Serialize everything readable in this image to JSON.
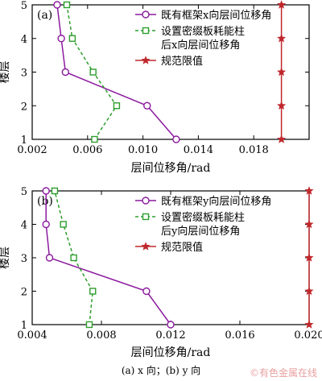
{
  "chart_data": [
    {
      "type": "line",
      "panel_label": "(a)",
      "xlabel": "层间位移角/rad",
      "ylabel": "楼层",
      "xlim": [
        0.002,
        0.022
      ],
      "ylim": [
        1,
        5
      ],
      "x_ticks": [
        "0.002",
        "0.006",
        "0.010",
        "0.014",
        "0.018"
      ],
      "y_ticks": [
        "1",
        "2",
        "3",
        "4",
        "5"
      ],
      "legend_position": "top-right",
      "series": [
        {
          "name_lines": [
            "既有框架x向层间位移角"
          ],
          "color": "#8b1a9e",
          "marker": "circle",
          "dash": "",
          "points": [
            [
              0.0124,
              1
            ],
            [
              0.0103,
              2
            ],
            [
              0.0044,
              3
            ],
            [
              0.0041,
              4
            ],
            [
              0.0038,
              5
            ]
          ]
        },
        {
          "name_lines": [
            "设置密缀板耗能柱",
            "后x向层间位移角"
          ],
          "color": "#2e9e2e",
          "marker": "square",
          "dash": "4,3",
          "points": [
            [
              0.0065,
              1
            ],
            [
              0.0081,
              2
            ],
            [
              0.0064,
              3
            ],
            [
              0.0049,
              4
            ],
            [
              0.0045,
              5
            ]
          ]
        },
        {
          "name_lines": [
            "规范限值"
          ],
          "color": "#c0282d",
          "marker": "star",
          "dash": "",
          "points": [
            [
              0.02,
              1
            ],
            [
              0.02,
              2
            ],
            [
              0.02,
              3
            ],
            [
              0.02,
              4
            ],
            [
              0.02,
              5
            ]
          ]
        }
      ]
    },
    {
      "type": "line",
      "panel_label": "(b)",
      "xlabel": "层间位移角/rad",
      "ylabel": "楼层",
      "xlim": [
        0.004,
        0.02
      ],
      "ylim": [
        1,
        5
      ],
      "x_ticks": [
        "0.004",
        "0.008",
        "0.012",
        "0.016",
        "0.020"
      ],
      "y_ticks": [
        "1",
        "2",
        "3",
        "4",
        "5"
      ],
      "legend_position": "top-right",
      "series": [
        {
          "name_lines": [
            "既有框架y向层间位移角"
          ],
          "color": "#8b1a9e",
          "marker": "circle",
          "dash": "",
          "points": [
            [
              0.012,
              1
            ],
            [
              0.0106,
              2
            ],
            [
              0.005,
              3
            ],
            [
              0.0048,
              4
            ],
            [
              0.0048,
              5
            ]
          ]
        },
        {
          "name_lines": [
            "设置密缀板耗能柱",
            "后y向层间位移角"
          ],
          "color": "#2e9e2e",
          "marker": "square",
          "dash": "4,3",
          "points": [
            [
              0.0073,
              1
            ],
            [
              0.0075,
              2
            ],
            [
              0.0064,
              3
            ],
            [
              0.0058,
              4
            ],
            [
              0.0053,
              5
            ]
          ]
        },
        {
          "name_lines": [
            "规范限值"
          ],
          "color": "#c0282d",
          "marker": "star",
          "dash": "",
          "points": [
            [
              0.02,
              1
            ],
            [
              0.02,
              2
            ],
            [
              0.02,
              3
            ],
            [
              0.02,
              4
            ],
            [
              0.02,
              5
            ]
          ]
        }
      ]
    }
  ],
  "caption": "(a) x 向；(b) y 向",
  "watermark": "©有色金属在线"
}
